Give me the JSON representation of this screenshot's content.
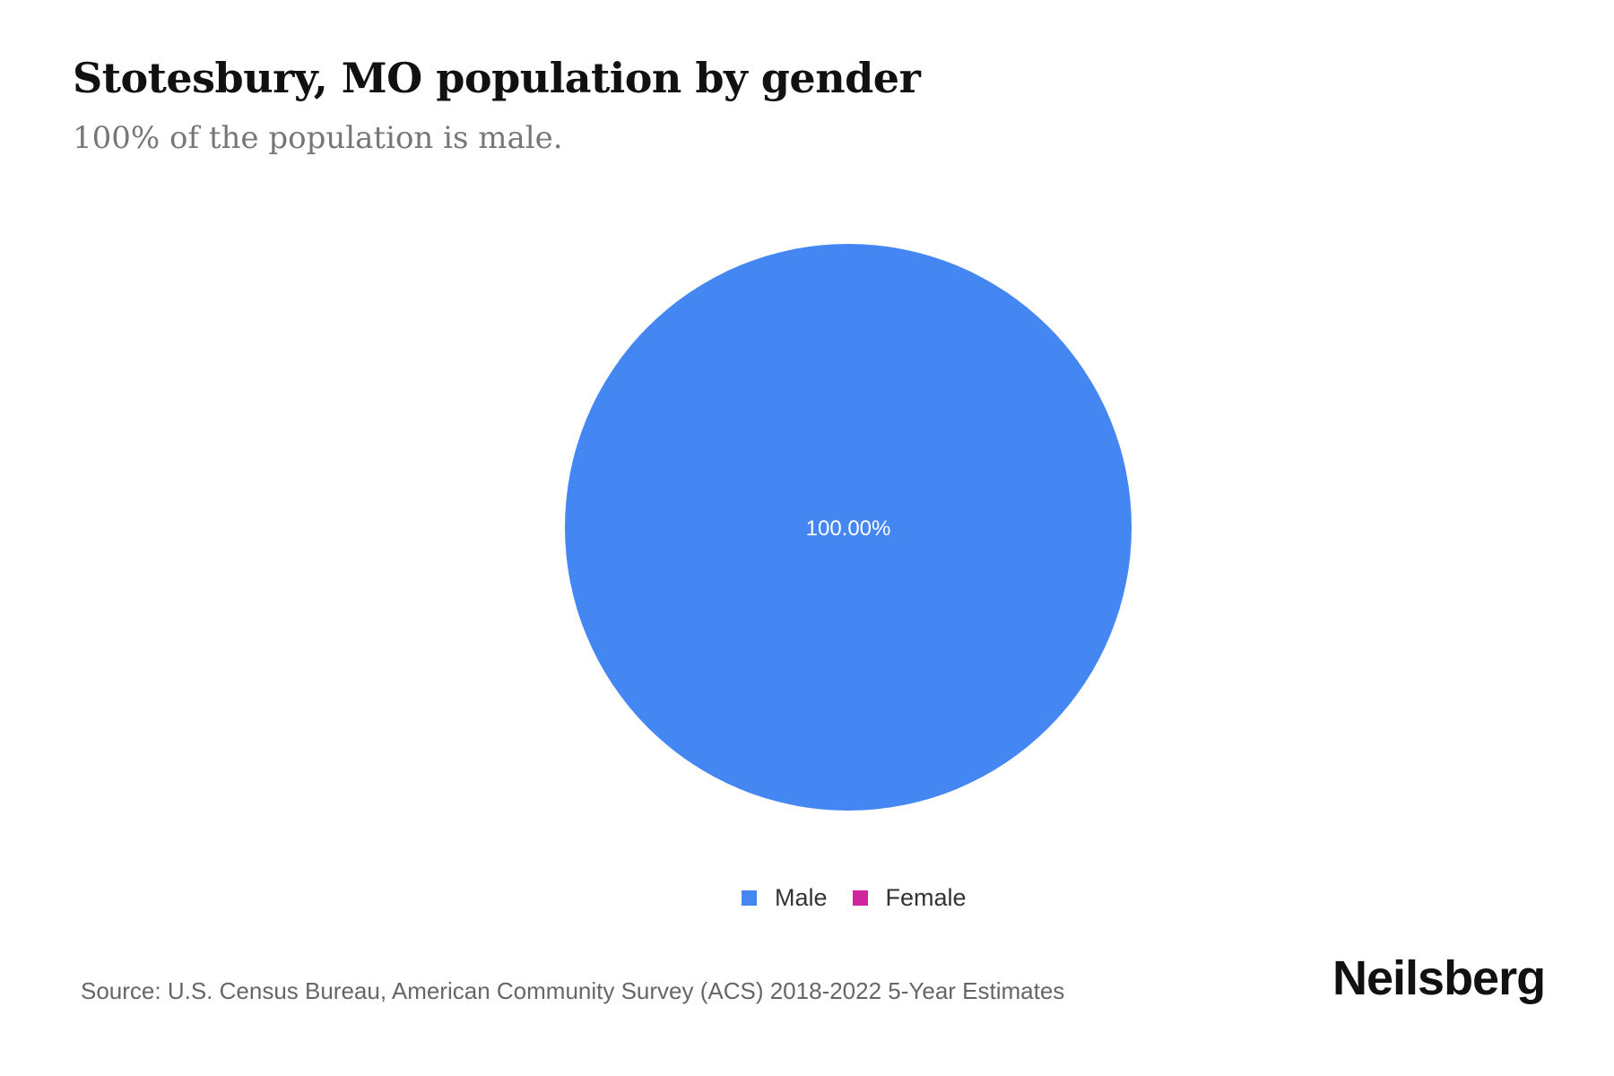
{
  "chart_data": {
    "type": "pie",
    "title": "Stotesbury, MO population by gender",
    "subtitle": "100% of the population is male.",
    "categories": [
      "Male",
      "Female"
    ],
    "values": [
      100.0,
      0.0
    ],
    "data_labels": [
      "100.00%"
    ],
    "colors": [
      "#4487f3",
      "#d3259b"
    ],
    "legend_placement": "bottom"
  },
  "source": "Source: U.S. Census Bureau, American Community Survey (ACS) 2018-2022 5-Year Estimates",
  "logo": "Neilsberg"
}
